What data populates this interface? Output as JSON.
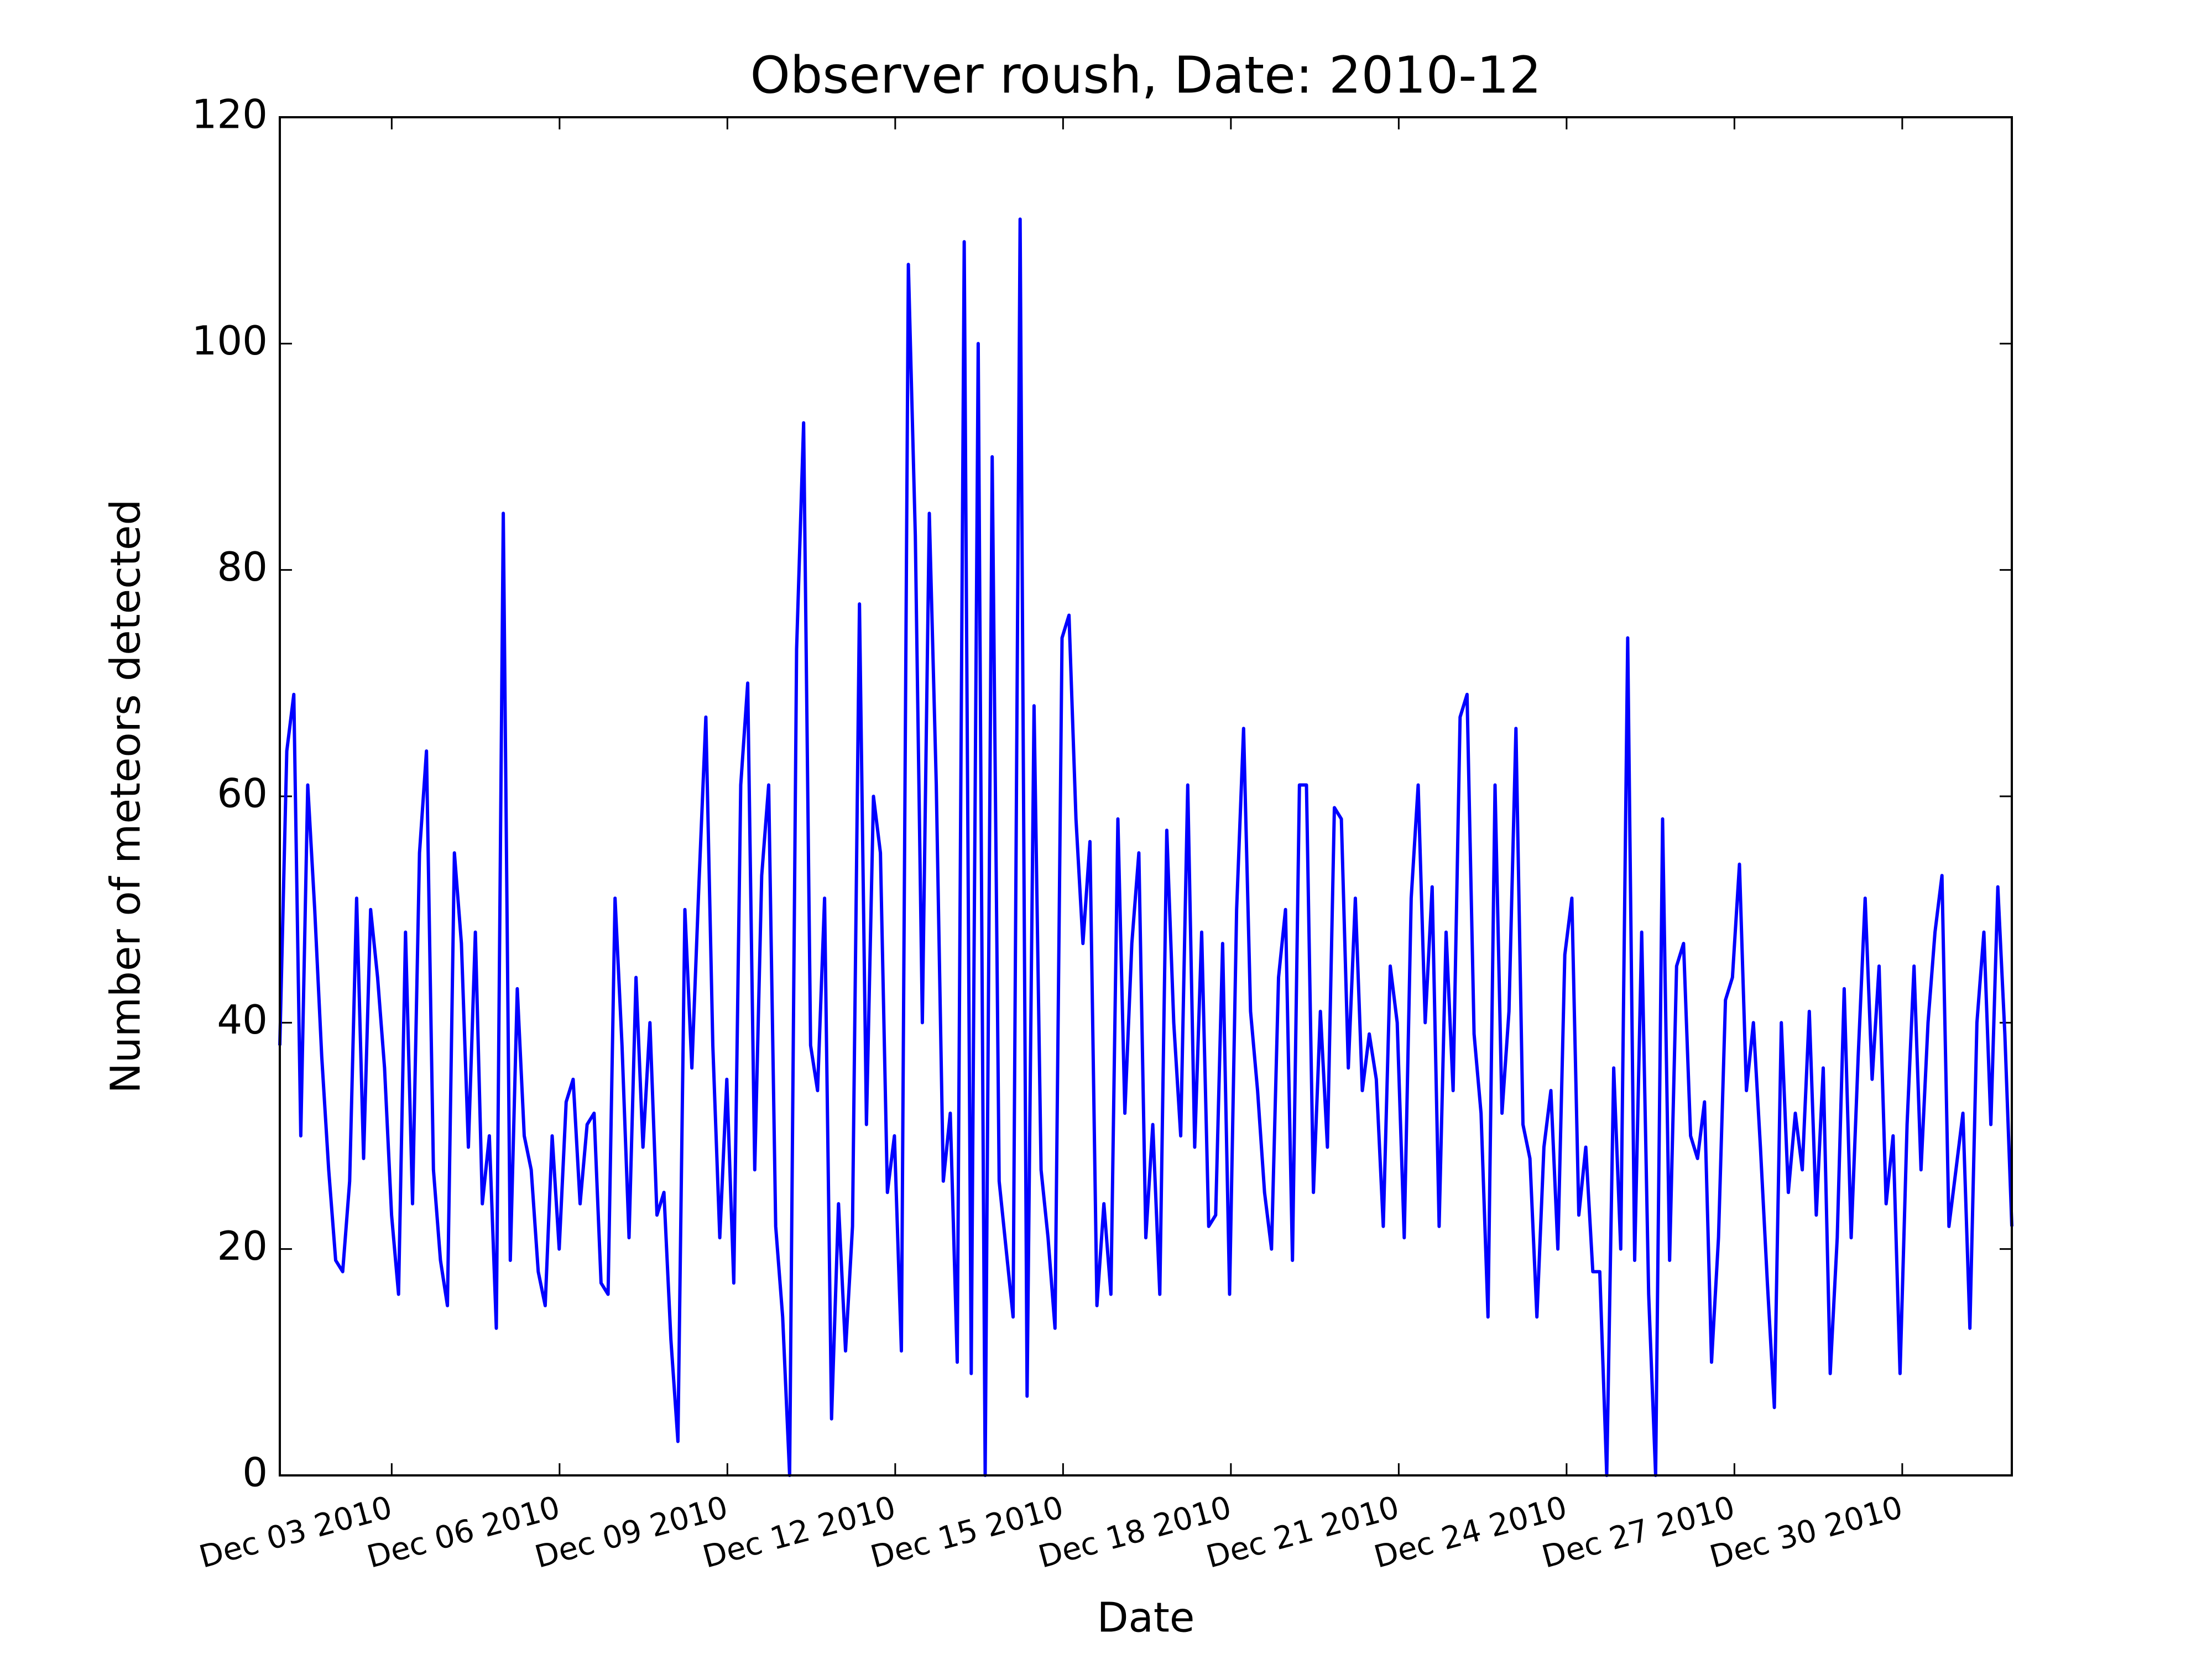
{
  "chart_data": {
    "type": "line",
    "title": "Observer roush, Date: 2010-12",
    "xlabel": "Date",
    "ylabel": "Number of meteors detected",
    "color": "#0000ff",
    "xlim": [
      "2010-12-01T00:00",
      "2010-12-31T23:00"
    ],
    "xticks": [
      {
        "value": "2010-12-03T00:00",
        "label": "Dec 03 2010"
      },
      {
        "value": "2010-12-06T00:00",
        "label": "Dec 06 2010"
      },
      {
        "value": "2010-12-09T00:00",
        "label": "Dec 09 2010"
      },
      {
        "value": "2010-12-12T00:00",
        "label": "Dec 12 2010"
      },
      {
        "value": "2010-12-15T00:00",
        "label": "Dec 15 2010"
      },
      {
        "value": "2010-12-18T00:00",
        "label": "Dec 18 2010"
      },
      {
        "value": "2010-12-21T00:00",
        "label": "Dec 21 2010"
      },
      {
        "value": "2010-12-24T00:00",
        "label": "Dec 24 2010"
      },
      {
        "value": "2010-12-27T00:00",
        "label": "Dec 27 2010"
      },
      {
        "value": "2010-12-30T00:00",
        "label": "Dec 30 2010"
      }
    ],
    "ylim": [
      0,
      120
    ],
    "yticks": [
      0,
      20,
      40,
      60,
      80,
      100,
      120
    ],
    "values": [
      38,
      64,
      69,
      30,
      61,
      50,
      37,
      27,
      19,
      18,
      26,
      51,
      28,
      50,
      44,
      36,
      23,
      16,
      48,
      24,
      55,
      64,
      27,
      19,
      15,
      55,
      47,
      29,
      48,
      24,
      30,
      13,
      85,
      19,
      43,
      30,
      27,
      18,
      15,
      30,
      20,
      33,
      35,
      24,
      31,
      32,
      17,
      16,
      51,
      38,
      21,
      44,
      29,
      40,
      23,
      25,
      12,
      3,
      50,
      36,
      52,
      67,
      38,
      21,
      35,
      17,
      61,
      70,
      27,
      53,
      61,
      22,
      14,
      0,
      73,
      93,
      38,
      34,
      51,
      5,
      24,
      11,
      22,
      77,
      31,
      60,
      55,
      25,
      30,
      11,
      107,
      83,
      40,
      85,
      61,
      26,
      32,
      10,
      109,
      9,
      100,
      0,
      90,
      26,
      20,
      14,
      111,
      7,
      68,
      27,
      21,
      13,
      74,
      76,
      58,
      47,
      56,
      15,
      24,
      16,
      58,
      32,
      47,
      55,
      21,
      31,
      16,
      57,
      40,
      30,
      61,
      29,
      48,
      22,
      23,
      47,
      16,
      50,
      66,
      41,
      34,
      25,
      20,
      44,
      50,
      19,
      61,
      61,
      25,
      41,
      29,
      59,
      58,
      36,
      51,
      34,
      39,
      35,
      22,
      45,
      40,
      21,
      51,
      61,
      40,
      52,
      22,
      48,
      34,
      67,
      69,
      39,
      32,
      14,
      61,
      32,
      41,
      66,
      31,
      28,
      14,
      29,
      34,
      20,
      46,
      51,
      23,
      29,
      18,
      18,
      0,
      36,
      20,
      74,
      19,
      48,
      16,
      0,
      58,
      19,
      45,
      47,
      30,
      28,
      33,
      10,
      21,
      42,
      44,
      54,
      34,
      40,
      29,
      17,
      6,
      40,
      25,
      32,
      27,
      41,
      23,
      36,
      9,
      21,
      43,
      21,
      37,
      51,
      35,
      45,
      24,
      30,
      9,
      31,
      45,
      27,
      40,
      48,
      53,
      22,
      27,
      32,
      13,
      40,
      48,
      31,
      52,
      39,
      22
    ]
  }
}
